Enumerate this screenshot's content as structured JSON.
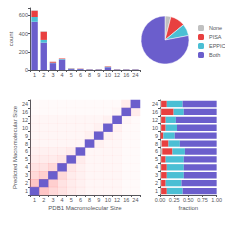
{
  "chart_data": [
    {
      "type": "bar",
      "categories": [
        "1",
        "2",
        "3",
        "4",
        "5",
        "6",
        "8",
        "9",
        "10",
        "12",
        "16",
        "24"
      ],
      "series": [
        {
          "name": "Both",
          "color": "#6B5ECC",
          "values": [
            530,
            300,
            75,
            115,
            10,
            10,
            5,
            5,
            30,
            5,
            5,
            5
          ]
        },
        {
          "name": "EPPIC",
          "color": "#4BBFD4",
          "values": [
            50,
            30,
            5,
            5,
            5,
            2,
            2,
            2,
            5,
            2,
            2,
            2
          ]
        },
        {
          "name": "PISA",
          "color": "#E84040",
          "values": [
            70,
            90,
            10,
            5,
            3,
            3,
            2,
            2,
            5,
            2,
            2,
            2
          ]
        },
        {
          "name": "None",
          "color": "#C0C0C0",
          "values": [
            5,
            5,
            2,
            2,
            1,
            1,
            1,
            1,
            1,
            1,
            1,
            1
          ]
        }
      ],
      "stacked": true,
      "ylabel": "count",
      "ylim": [
        0,
        680
      ],
      "yticks": [
        0,
        200,
        400,
        600
      ],
      "grid": false
    },
    {
      "type": "pie",
      "categories": [
        "None",
        "PISA",
        "EPPIC",
        "Both"
      ],
      "values": [
        0.04,
        0.1,
        0.08,
        0.78
      ],
      "colors": [
        "#C0C0C0",
        "#E84040",
        "#4BBFD4",
        "#6B5ECC"
      ],
      "legend": "right"
    },
    {
      "type": "heatmap",
      "x": [
        "1",
        "2",
        "3",
        "4",
        "5",
        "6",
        "8",
        "9",
        "10",
        "12",
        "16",
        "24"
      ],
      "y": [
        "1",
        "2",
        "3",
        "4",
        "5",
        "6",
        "8",
        "9",
        "10",
        "12",
        "16",
        "24"
      ],
      "values": [
        [
          1.0,
          0.12,
          0.08,
          0.06,
          0.04,
          0.03,
          0.02,
          0.02,
          0.02,
          0.02,
          0.01,
          0.01
        ],
        [
          0.12,
          1.0,
          0.1,
          0.06,
          0.04,
          0.03,
          0.02,
          0.02,
          0.02,
          0.02,
          0.01,
          0.01
        ],
        [
          0.08,
          0.1,
          1.0,
          0.08,
          0.04,
          0.03,
          0.02,
          0.02,
          0.02,
          0.02,
          0.01,
          0.01
        ],
        [
          0.06,
          0.06,
          0.08,
          1.0,
          0.05,
          0.03,
          0.02,
          0.02,
          0.02,
          0.02,
          0.01,
          0.01
        ],
        [
          0.04,
          0.04,
          0.04,
          0.05,
          1.0,
          0.04,
          0.02,
          0.02,
          0.02,
          0.02,
          0.01,
          0.01
        ],
        [
          0.03,
          0.03,
          0.03,
          0.03,
          0.04,
          1.0,
          0.02,
          0.02,
          0.02,
          0.02,
          0.01,
          0.01
        ],
        [
          0.02,
          0.02,
          0.02,
          0.02,
          0.02,
          0.02,
          1.0,
          0.03,
          0.02,
          0.02,
          0.01,
          0.01
        ],
        [
          0.02,
          0.02,
          0.02,
          0.02,
          0.02,
          0.02,
          0.03,
          1.0,
          0.03,
          0.02,
          0.01,
          0.01
        ],
        [
          0.02,
          0.02,
          0.02,
          0.02,
          0.02,
          0.02,
          0.02,
          0.03,
          1.0,
          0.03,
          0.01,
          0.01
        ],
        [
          0.02,
          0.02,
          0.02,
          0.02,
          0.02,
          0.02,
          0.02,
          0.02,
          0.03,
          1.0,
          0.02,
          0.01
        ],
        [
          0.01,
          0.01,
          0.01,
          0.01,
          0.01,
          0.01,
          0.01,
          0.01,
          0.01,
          0.02,
          1.0,
          0.04
        ],
        [
          0.01,
          0.01,
          0.01,
          0.01,
          0.01,
          0.01,
          0.01,
          0.01,
          0.01,
          0.01,
          0.04,
          1.0
        ]
      ],
      "colors": [
        "#6B5ECC",
        "#FF8888"
      ],
      "xlabel": "PDB1 Macromolecular Size",
      "ylabel": "Predicted Macromolecular Size"
    },
    {
      "type": "bar",
      "orientation": "horizontal",
      "stacked": true,
      "categories": [
        "1",
        "2",
        "3",
        "4",
        "5",
        "6",
        "8",
        "9",
        "10",
        "12",
        "16",
        "24"
      ],
      "series": [
        {
          "name": "None",
          "color": "#C0C0C0",
          "values": [
            0.02,
            0.02,
            0.02,
            0.02,
            0.02,
            0.04,
            0.03,
            0.01,
            0.02,
            0.02,
            0.02,
            0.02
          ]
        },
        {
          "name": "PISA",
          "color": "#E84040",
          "values": [
            0.1,
            0.08,
            0.1,
            0.1,
            0.08,
            0.18,
            0.12,
            0.05,
            0.08,
            0.08,
            0.22,
            0.1
          ]
        },
        {
          "name": "EPPIC",
          "color": "#4BBFD4",
          "values": [
            0.28,
            0.28,
            0.3,
            0.3,
            0.32,
            0.22,
            0.2,
            0.2,
            0.2,
            0.18,
            0.18,
            0.28
          ]
        },
        {
          "name": "Both",
          "color": "#6B5ECC",
          "values": [
            0.6,
            0.62,
            0.58,
            0.58,
            0.58,
            0.56,
            0.65,
            0.74,
            0.7,
            0.72,
            0.58,
            0.6
          ]
        }
      ],
      "xlabel": "fraction",
      "xlim": [
        0,
        1
      ],
      "xticks": [
        {
          "value": 0,
          "label": "0.00"
        },
        {
          "value": 0.25,
          "label": "0.25"
        },
        {
          "value": 0.5,
          "label": "0.50"
        },
        {
          "value": 0.75,
          "label": "0.75"
        },
        {
          "value": 1,
          "label": "1.00"
        }
      ],
      "grid": false
    }
  ]
}
